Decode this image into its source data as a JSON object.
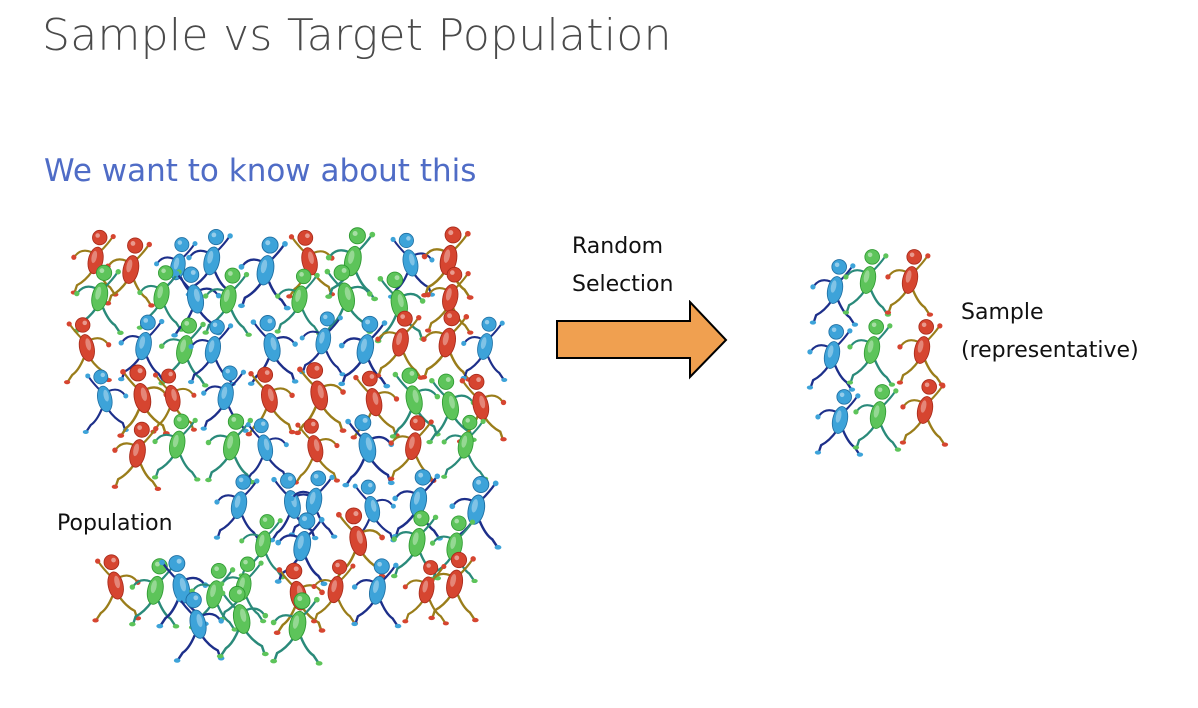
{
  "title": "Sample vs Target Population",
  "subtitle": "We want to know about this",
  "arrow": {
    "line1": "Random",
    "line2": "Selection",
    "color": "#F0A050"
  },
  "population": {
    "label": "Population",
    "figure_colors": [
      "#3DA3D9",
      "#D64530",
      "#5DC45A"
    ]
  },
  "sample": {
    "line1": "Sample",
    "line2": "(representative)"
  }
}
